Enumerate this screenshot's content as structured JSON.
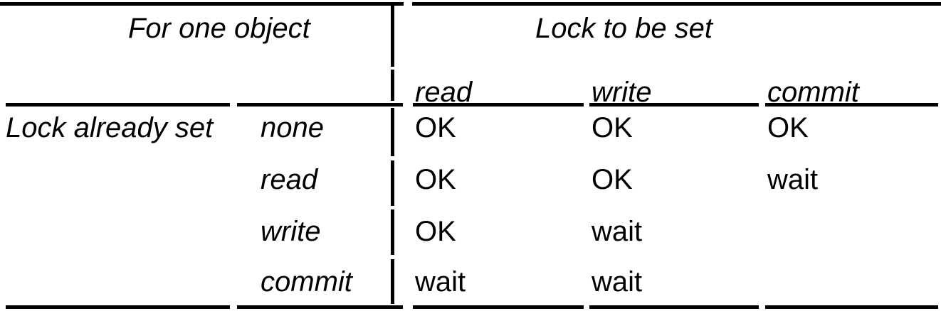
{
  "table": {
    "corner_label": "For one object",
    "column_group_label": "Lock to be set",
    "row_group_label": "Lock already set",
    "columns": [
      "read",
      "write",
      "commit"
    ],
    "rows": [
      {
        "label": "none",
        "cells": [
          "OK",
          "OK",
          "OK"
        ]
      },
      {
        "label": "read",
        "cells": [
          "OK",
          "OK",
          "wait"
        ]
      },
      {
        "label": "write",
        "cells": [
          "OK",
          "wait",
          ""
        ]
      },
      {
        "label": "commit",
        "cells": [
          "wait",
          "wait",
          ""
        ]
      }
    ]
  }
}
